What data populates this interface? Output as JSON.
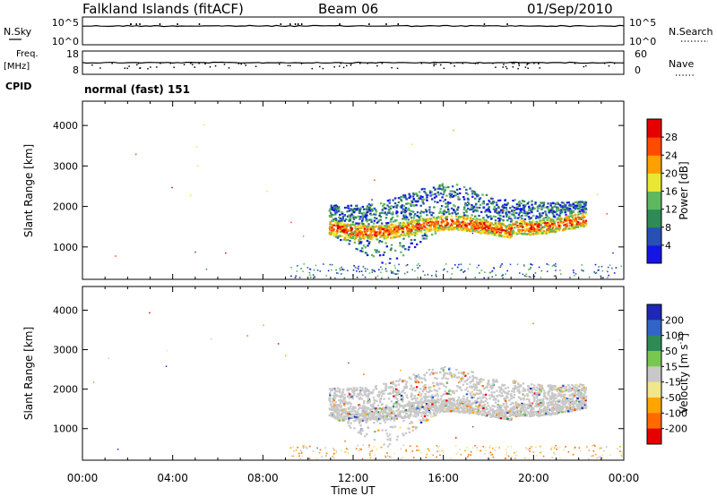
{
  "header": {
    "title": "Falkland Islands (fitACF)",
    "beam": "Beam 06",
    "date": "01/Sep/2010"
  },
  "strips": {
    "nsky_label": "N.Sky",
    "nsearch_label": "N.Search",
    "freq_label_line1": "Freq.",
    "freq_label_line2": "[MHz]",
    "nave_label": "Nave",
    "cpid_label": "CPID",
    "cpid_text": "normal (fast) 151",
    "noise_left_ticks": [
      "10^5",
      "10^0"
    ],
    "noise_right_ticks": [
      "10^5",
      "10^0"
    ],
    "freq_left_ticks": [
      "18",
      "8"
    ],
    "freq_right_ticks": [
      "60",
      "0"
    ]
  },
  "chart_data": [
    {
      "type": "heatmap",
      "name": "Power",
      "ylabel": "Slant Range [km]",
      "xlabel": "",
      "y_ticks": [
        1000,
        2000,
        3000,
        4000
      ],
      "ylim": [
        200,
        4600
      ],
      "xlim": [
        0,
        24
      ],
      "colorbar": {
        "label": "Power [dB]",
        "ticks": [
          "4",
          "8",
          "12",
          "16",
          "20",
          "24",
          "28"
        ],
        "colors": [
          "#1414e6",
          "#2850b4",
          "#2e8b57",
          "#5fb85f",
          "#e8e832",
          "#ff9f00",
          "#ff4b00",
          "#e60000"
        ]
      }
    },
    {
      "type": "heatmap",
      "name": "Velocity",
      "ylabel": "Slant Range [km]",
      "xlabel": "Time UT",
      "y_ticks": [
        1000,
        2000,
        3000,
        4000
      ],
      "ylim": [
        200,
        4600
      ],
      "xlim": [
        0,
        24
      ],
      "x_ticks": [
        "00:00",
        "04:00",
        "08:00",
        "12:00",
        "16:00",
        "20:00",
        "00:00"
      ],
      "colorbar": {
        "label": "Velocity [m s^-1]",
        "ticks": [
          "200",
          "100",
          "50",
          "15",
          "-15",
          "-50",
          "-100",
          "-200"
        ],
        "colors": [
          "#1e28b4",
          "#3264c8",
          "#2e8b57",
          "#78c850",
          "#c8c8c8",
          "#f0e68c",
          "#ffa500",
          "#ff6a00",
          "#e60000"
        ]
      }
    }
  ]
}
